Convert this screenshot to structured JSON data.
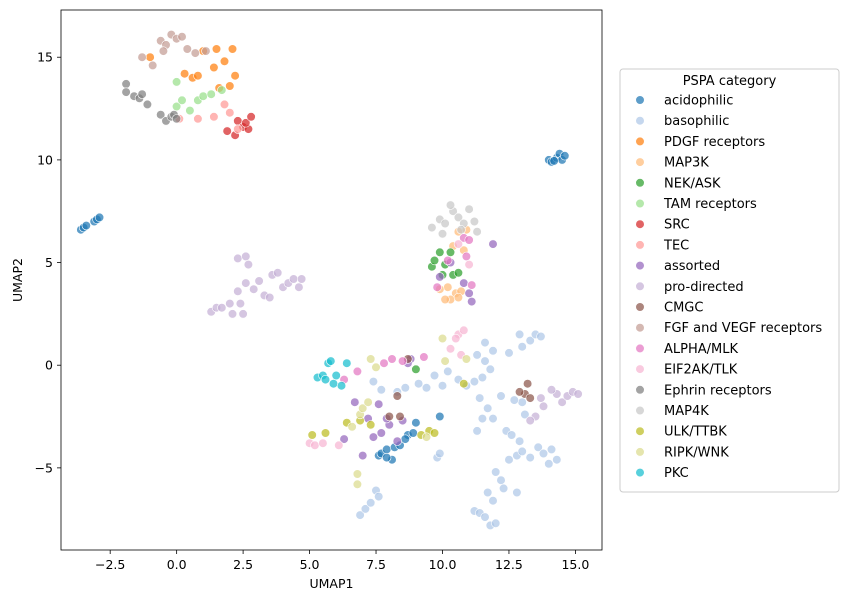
{
  "chart_data": {
    "type": "scatter",
    "title": "",
    "xlabel": "UMAP1",
    "ylabel": "UMAP2",
    "xlim": [
      -4.35,
      16.0
    ],
    "ylim": [
      -9.0,
      17.3
    ],
    "xticks": [
      -2.5,
      0.0,
      2.5,
      5.0,
      7.5,
      10.0,
      12.5,
      15.0
    ],
    "xtick_labels": [
      "−2.5",
      "0.0",
      "2.5",
      "5.0",
      "7.5",
      "10.0",
      "12.5",
      "15.0"
    ],
    "yticks": [
      -5,
      0,
      5,
      10,
      15
    ],
    "ytick_labels": [
      "−5",
      "0",
      "5",
      "10",
      "15"
    ],
    "grid": false,
    "legend": {
      "title": "PSPA category",
      "placement": "center-right-outside"
    },
    "series": [
      {
        "name": "acidophilic",
        "color": "#1f77b4",
        "points": [
          [
            -3.6,
            6.6
          ],
          [
            -3.5,
            6.7
          ],
          [
            -3.4,
            6.8
          ],
          [
            -3.1,
            7.0
          ],
          [
            -3.0,
            7.1
          ],
          [
            -2.9,
            7.2
          ],
          [
            14.0,
            10.0
          ],
          [
            14.1,
            9.9
          ],
          [
            14.3,
            10.1
          ],
          [
            14.4,
            10.3
          ],
          [
            14.5,
            10.0
          ],
          [
            14.6,
            10.2
          ],
          [
            14.2,
            9.95
          ],
          [
            7.6,
            -4.4
          ],
          [
            7.7,
            -4.3
          ],
          [
            7.9,
            -4.1
          ],
          [
            8.1,
            -4.6
          ],
          [
            8.2,
            -4.0
          ],
          [
            8.4,
            -3.9
          ],
          [
            8.7,
            -3.4
          ],
          [
            8.9,
            -3.3
          ],
          [
            9.0,
            -2.8
          ],
          [
            9.9,
            -2.5
          ],
          [
            7.9,
            -4.5
          ],
          [
            8.6,
            -3.6
          ]
        ]
      },
      {
        "name": "basophilic",
        "color": "#aec7e8",
        "points": [
          [
            6.9,
            -7.3
          ],
          [
            7.1,
            -7.0
          ],
          [
            7.3,
            -6.7
          ],
          [
            7.5,
            -6.1
          ],
          [
            7.6,
            -6.4
          ],
          [
            9.8,
            -4.5
          ],
          [
            9.9,
            -4.3
          ],
          [
            11.2,
            -7.1
          ],
          [
            11.4,
            -7.2
          ],
          [
            11.6,
            -7.4
          ],
          [
            11.8,
            -7.8
          ],
          [
            12.0,
            -7.7
          ],
          [
            11.9,
            -6.6
          ],
          [
            11.7,
            -6.2
          ],
          [
            12.2,
            -5.6
          ],
          [
            12.0,
            -5.2
          ],
          [
            12.5,
            -4.6
          ],
          [
            12.8,
            -4.4
          ],
          [
            13.0,
            -4.2
          ],
          [
            13.3,
            -4.5
          ],
          [
            13.6,
            -4.0
          ],
          [
            13.8,
            -4.3
          ],
          [
            14.1,
            -4.1
          ],
          [
            14.3,
            -4.6
          ],
          [
            14.0,
            -4.8
          ],
          [
            12.3,
            -6.0
          ],
          [
            12.8,
            -6.2
          ],
          [
            11.3,
            -3.2
          ],
          [
            11.5,
            -2.6
          ],
          [
            11.7,
            -2.1
          ],
          [
            11.9,
            -2.6
          ],
          [
            12.4,
            -3.2
          ],
          [
            12.6,
            -3.4
          ],
          [
            12.9,
            -3.7
          ],
          [
            13.1,
            -2.4
          ],
          [
            13.0,
            -1.8
          ],
          [
            12.7,
            -1.7
          ],
          [
            12.2,
            -1.5
          ],
          [
            11.4,
            -1.6
          ],
          [
            11.2,
            -0.8
          ],
          [
            11.5,
            -0.6
          ],
          [
            11.8,
            -0.2
          ],
          [
            11.6,
            0.2
          ],
          [
            11.9,
            0.7
          ],
          [
            12.5,
            0.6
          ],
          [
            13.0,
            0.9
          ],
          [
            13.3,
            1.2
          ],
          [
            13.5,
            1.5
          ],
          [
            13.7,
            1.4
          ],
          [
            12.9,
            1.5
          ],
          [
            10.9,
            -1.0
          ],
          [
            10.6,
            -0.7
          ],
          [
            9.4,
            -1.1
          ],
          [
            9.1,
            -0.9
          ],
          [
            8.6,
            -1.1
          ],
          [
            8.3,
            -1.3
          ],
          [
            7.7,
            -1.2
          ],
          [
            7.4,
            -0.8
          ],
          [
            9.7,
            -0.5
          ],
          [
            10.2,
            -0.3
          ],
          [
            10.0,
            -1.0
          ],
          [
            11.6,
            1.1
          ],
          [
            11.3,
            0.5
          ]
        ]
      },
      {
        "name": "PDGF receptors",
        "color": "#ff7f0e",
        "points": [
          [
            -1.0,
            15.0
          ],
          [
            0.3,
            14.2
          ],
          [
            0.6,
            14.0
          ],
          [
            0.8,
            14.1
          ],
          [
            1.0,
            15.3
          ],
          [
            1.4,
            14.5
          ],
          [
            1.5,
            15.4
          ],
          [
            1.8,
            14.8
          ],
          [
            2.1,
            15.4
          ],
          [
            2.2,
            14.1
          ],
          [
            2.0,
            13.6
          ],
          [
            1.6,
            13.5
          ]
        ]
      },
      {
        "name": "MAP3K",
        "color": "#ffbb78",
        "points": [
          [
            10.6,
            6.5
          ],
          [
            10.9,
            6.6
          ],
          [
            10.4,
            5.8
          ],
          [
            10.8,
            5.6
          ],
          [
            10.2,
            3.8
          ],
          [
            10.5,
            3.5
          ],
          [
            10.7,
            3.6
          ],
          [
            10.3,
            3.2
          ],
          [
            10.6,
            3.3
          ],
          [
            9.9,
            3.7
          ],
          [
            10.1,
            3.2
          ]
        ]
      },
      {
        "name": "NEK/ASK",
        "color": "#2ca02c",
        "points": [
          [
            9.6,
            4.8
          ],
          [
            9.7,
            5.1
          ],
          [
            9.9,
            5.5
          ],
          [
            10.0,
            4.4
          ],
          [
            10.3,
            5.5
          ],
          [
            10.4,
            4.4
          ],
          [
            10.6,
            4.5
          ],
          [
            10.1,
            4.9
          ],
          [
            9.0,
            -0.2
          ]
        ]
      },
      {
        "name": "TAM receptors",
        "color": "#98df8a",
        "points": [
          [
            0.0,
            13.8
          ],
          [
            0.0,
            12.6
          ],
          [
            0.2,
            12.9
          ],
          [
            0.5,
            12.4
          ],
          [
            0.8,
            12.9
          ],
          [
            1.0,
            13.1
          ],
          [
            1.3,
            13.2
          ],
          [
            1.7,
            13.4
          ]
        ]
      },
      {
        "name": "SRC",
        "color": "#d62728",
        "points": [
          [
            1.9,
            11.4
          ],
          [
            2.2,
            11.2
          ],
          [
            2.3,
            11.9
          ],
          [
            2.5,
            11.6
          ],
          [
            2.7,
            11.5
          ],
          [
            2.6,
            11.8
          ],
          [
            2.8,
            12.1
          ]
        ]
      },
      {
        "name": "TEC",
        "color": "#ff9896",
        "points": [
          [
            0.1,
            12.0
          ],
          [
            0.8,
            12.0
          ],
          [
            1.4,
            12.1
          ],
          [
            1.8,
            12.7
          ],
          [
            2.0,
            12.3
          ],
          [
            2.3,
            11.5
          ]
        ]
      },
      {
        "name": "assorted",
        "color": "#9467bd",
        "points": [
          [
            10.3,
            5.0
          ],
          [
            10.8,
            4.0
          ],
          [
            11.0,
            3.5
          ],
          [
            11.1,
            3.1
          ],
          [
            11.9,
            5.9
          ],
          [
            9.9,
            4.3
          ],
          [
            7.6,
            -1.9
          ],
          [
            7.7,
            -3.3
          ],
          [
            8.0,
            -2.9
          ],
          [
            7.9,
            -2.6
          ],
          [
            8.5,
            -2.7
          ],
          [
            6.3,
            -3.6
          ],
          [
            7.0,
            -4.4
          ],
          [
            7.2,
            -2.6
          ],
          [
            7.4,
            -3.5
          ],
          [
            8.3,
            -3.7
          ],
          [
            6.7,
            -1.8
          ],
          [
            8.8,
            0.3
          ],
          [
            8.7,
            0.1
          ]
        ]
      },
      {
        "name": "pro-directed",
        "color": "#c5b0d5",
        "points": [
          [
            1.3,
            2.6
          ],
          [
            1.5,
            2.8
          ],
          [
            1.7,
            2.8
          ],
          [
            2.0,
            3.0
          ],
          [
            2.1,
            2.5
          ],
          [
            2.4,
            3.0
          ],
          [
            2.5,
            2.5
          ],
          [
            2.3,
            3.6
          ],
          [
            2.6,
            4.0
          ],
          [
            2.9,
            3.7
          ],
          [
            3.1,
            4.1
          ],
          [
            3.3,
            3.4
          ],
          [
            3.5,
            3.3
          ],
          [
            3.6,
            4.4
          ],
          [
            3.8,
            4.5
          ],
          [
            4.0,
            3.8
          ],
          [
            4.2,
            4.0
          ],
          [
            4.4,
            4.2
          ],
          [
            4.6,
            3.8
          ],
          [
            4.7,
            4.2
          ],
          [
            2.3,
            5.2
          ],
          [
            2.6,
            5.3
          ],
          [
            2.7,
            4.9
          ],
          [
            14.3,
            -1.4
          ],
          [
            14.5,
            -1.8
          ],
          [
            14.7,
            -1.5
          ],
          [
            14.9,
            -1.3
          ],
          [
            15.1,
            -1.4
          ],
          [
            13.8,
            -2.0
          ],
          [
            13.7,
            -1.6
          ],
          [
            14.1,
            -1.2
          ],
          [
            13.5,
            -2.5
          ],
          [
            13.3,
            -2.7
          ]
        ]
      },
      {
        "name": "CMGC",
        "color": "#8c564b",
        "points": [
          [
            8.3,
            -1.5
          ],
          [
            8.0,
            -2.5
          ],
          [
            8.4,
            -2.5
          ],
          [
            8.7,
            0.3
          ],
          [
            13.1,
            -1.4
          ],
          [
            13.2,
            -0.9
          ],
          [
            13.3,
            -1.6
          ],
          [
            12.9,
            -1.3
          ]
        ]
      },
      {
        "name": "FGF and VEGF receptors",
        "color": "#c49c94",
        "points": [
          [
            -1.3,
            15.0
          ],
          [
            -0.9,
            14.6
          ],
          [
            -0.6,
            15.8
          ],
          [
            -0.4,
            15.6
          ],
          [
            -0.2,
            16.1
          ],
          [
            0.0,
            15.9
          ],
          [
            0.2,
            16.0
          ],
          [
            0.4,
            15.4
          ],
          [
            0.7,
            15.2
          ],
          [
            1.1,
            15.3
          ],
          [
            -0.5,
            15.3
          ]
        ]
      },
      {
        "name": "ALPHA/MLK",
        "color": "#e377c2",
        "points": [
          [
            6.8,
            -0.3
          ],
          [
            7.8,
            0.1
          ],
          [
            8.1,
            0.3
          ],
          [
            8.5,
            0.2
          ],
          [
            9.3,
            0.4
          ],
          [
            10.8,
            6.2
          ],
          [
            11.0,
            6.1
          ],
          [
            10.9,
            5.3
          ],
          [
            10.2,
            5.1
          ],
          [
            9.8,
            3.8
          ],
          [
            11.1,
            3.9
          ],
          [
            6.3,
            -0.7
          ]
        ]
      },
      {
        "name": "EIF2AK/TLK",
        "color": "#f7b6d2",
        "points": [
          [
            5.0,
            -3.8
          ],
          [
            5.2,
            -3.9
          ],
          [
            5.5,
            -3.8
          ],
          [
            6.1,
            -3.9
          ],
          [
            10.6,
            1.5
          ],
          [
            10.8,
            1.7
          ],
          [
            10.5,
            1.3
          ],
          [
            10.3,
            0.8
          ],
          [
            10.7,
            0.5
          ],
          [
            10.6,
            5.9
          ],
          [
            11.0,
            4.9
          ]
        ]
      },
      {
        "name": "Ephrin receptors",
        "color": "#7f7f7f",
        "points": [
          [
            -1.9,
            13.7
          ],
          [
            -1.9,
            13.3
          ],
          [
            -1.6,
            13.1
          ],
          [
            -1.4,
            13.0
          ],
          [
            -1.3,
            13.2
          ],
          [
            -1.1,
            12.7
          ],
          [
            -0.6,
            12.2
          ],
          [
            -0.4,
            11.9
          ],
          [
            -0.2,
            12.1
          ],
          [
            -0.1,
            12.2
          ],
          [
            0.0,
            12.0
          ]
        ]
      },
      {
        "name": "MAP4K",
        "color": "#c7c7c7",
        "points": [
          [
            9.9,
            7.1
          ],
          [
            10.1,
            6.9
          ],
          [
            10.4,
            7.5
          ],
          [
            10.6,
            7.2
          ],
          [
            10.8,
            6.9
          ],
          [
            11.2,
            7.0
          ],
          [
            11.0,
            7.6
          ],
          [
            9.6,
            6.7
          ],
          [
            10.0,
            6.4
          ],
          [
            10.3,
            7.8
          ],
          [
            11.3,
            6.5
          ],
          [
            10.7,
            6.6
          ]
        ]
      },
      {
        "name": "ULK/TTBK",
        "color": "#bcbd22",
        "points": [
          [
            5.1,
            -3.4
          ],
          [
            5.6,
            -3.3
          ],
          [
            6.4,
            -2.8
          ],
          [
            6.9,
            -2.7
          ],
          [
            9.5,
            -3.2
          ],
          [
            9.7,
            -3.3
          ],
          [
            10.8,
            -0.9
          ],
          [
            9.2,
            -3.4
          ],
          [
            7.3,
            -2.9
          ]
        ]
      },
      {
        "name": "RIPK/WNK",
        "color": "#dbdb8d",
        "points": [
          [
            6.8,
            -5.3
          ],
          [
            6.8,
            -5.8
          ],
          [
            6.9,
            -2.4
          ],
          [
            7.0,
            -2.1
          ],
          [
            7.2,
            -1.8
          ],
          [
            7.3,
            0.3
          ],
          [
            7.5,
            -0.1
          ],
          [
            10.0,
            1.3
          ],
          [
            10.9,
            0.3
          ],
          [
            10.1,
            0.2
          ],
          [
            9.4,
            -3.5
          ],
          [
            6.6,
            -3.0
          ]
        ]
      },
      {
        "name": "PKC",
        "color": "#17becf",
        "points": [
          [
            5.3,
            -0.6
          ],
          [
            5.5,
            -0.5
          ],
          [
            5.7,
            0.1
          ],
          [
            5.8,
            0.2
          ],
          [
            6.0,
            -0.5
          ],
          [
            5.9,
            -0.9
          ],
          [
            6.2,
            -1.0
          ],
          [
            6.4,
            0.1
          ],
          [
            5.6,
            -0.7
          ]
        ]
      }
    ]
  }
}
